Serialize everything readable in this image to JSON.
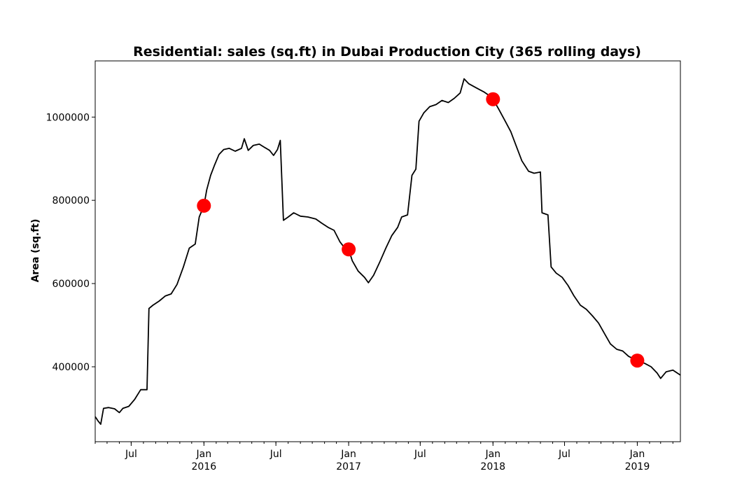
{
  "chart_data": {
    "type": "line",
    "title": "Residential: sales (sq.ft) in Dubai Production City (365 rolling days)",
    "xlabel": "",
    "ylabel": "Area (sq.ft)",
    "xlim": [
      "2015-04-01",
      "2019-04-20"
    ],
    "ylim": [
      220000,
      1135000
    ],
    "grid": false,
    "legend": "none",
    "y_ticks": [
      400000,
      600000,
      800000,
      1000000
    ],
    "y_tick_labels": [
      "400000",
      "600000",
      "800000",
      "1000000"
    ],
    "x_ticks": [
      {
        "date": "2015-07-01",
        "label": "Jul",
        "sublabel": ""
      },
      {
        "date": "2016-01-01",
        "label": "Jan",
        "sublabel": "2016"
      },
      {
        "date": "2016-07-01",
        "label": "Jul",
        "sublabel": ""
      },
      {
        "date": "2017-01-01",
        "label": "Jan",
        "sublabel": "2017"
      },
      {
        "date": "2017-07-01",
        "label": "Jul",
        "sublabel": ""
      },
      {
        "date": "2018-01-01",
        "label": "Jan",
        "sublabel": "2018"
      },
      {
        "date": "2018-07-01",
        "label": "Jul",
        "sublabel": ""
      },
      {
        "date": "2019-01-01",
        "label": "Jan",
        "sublabel": "2019"
      }
    ],
    "series": [
      {
        "color": "#000000",
        "points": [
          [
            "2015-04-01",
            280000
          ],
          [
            "2015-04-08",
            270000
          ],
          [
            "2015-04-15",
            262000
          ],
          [
            "2015-04-22",
            300000
          ],
          [
            "2015-05-05",
            302000
          ],
          [
            "2015-05-20",
            299000
          ],
          [
            "2015-06-01",
            290000
          ],
          [
            "2015-06-10",
            300000
          ],
          [
            "2015-06-25",
            305000
          ],
          [
            "2015-07-10",
            322000
          ],
          [
            "2015-07-25",
            345000
          ],
          [
            "2015-08-10",
            345000
          ],
          [
            "2015-08-15",
            540000
          ],
          [
            "2015-08-25",
            548000
          ],
          [
            "2015-09-10",
            558000
          ],
          [
            "2015-09-25",
            570000
          ],
          [
            "2015-10-10",
            575000
          ],
          [
            "2015-10-25",
            598000
          ],
          [
            "2015-11-10",
            640000
          ],
          [
            "2015-11-25",
            685000
          ],
          [
            "2015-12-10",
            695000
          ],
          [
            "2015-12-20",
            760000
          ],
          [
            "2016-01-01",
            787000
          ],
          [
            "2016-01-08",
            825000
          ],
          [
            "2016-01-18",
            860000
          ],
          [
            "2016-01-28",
            885000
          ],
          [
            "2016-02-08",
            910000
          ],
          [
            "2016-02-20",
            922000
          ],
          [
            "2016-03-05",
            925000
          ],
          [
            "2016-03-20",
            918000
          ],
          [
            "2016-04-05",
            925000
          ],
          [
            "2016-04-12",
            948000
          ],
          [
            "2016-04-22",
            920000
          ],
          [
            "2016-05-05",
            932000
          ],
          [
            "2016-05-20",
            935000
          ],
          [
            "2016-06-01",
            928000
          ],
          [
            "2016-06-15",
            920000
          ],
          [
            "2016-06-25",
            908000
          ],
          [
            "2016-07-05",
            922000
          ],
          [
            "2016-07-12",
            944000
          ],
          [
            "2016-07-20",
            752000
          ],
          [
            "2016-08-01",
            760000
          ],
          [
            "2016-08-15",
            770000
          ],
          [
            "2016-09-01",
            762000
          ],
          [
            "2016-09-20",
            760000
          ],
          [
            "2016-10-10",
            755000
          ],
          [
            "2016-10-25",
            745000
          ],
          [
            "2016-11-10",
            735000
          ],
          [
            "2016-11-25",
            728000
          ],
          [
            "2016-12-10",
            700000
          ],
          [
            "2016-12-20",
            688000
          ],
          [
            "2017-01-01",
            682000
          ],
          [
            "2017-01-10",
            655000
          ],
          [
            "2017-01-25",
            630000
          ],
          [
            "2017-02-10",
            615000
          ],
          [
            "2017-02-20",
            602000
          ],
          [
            "2017-03-05",
            620000
          ],
          [
            "2017-03-20",
            650000
          ],
          [
            "2017-04-05",
            685000
          ],
          [
            "2017-04-20",
            715000
          ],
          [
            "2017-05-05",
            735000
          ],
          [
            "2017-05-15",
            760000
          ],
          [
            "2017-05-30",
            765000
          ],
          [
            "2017-06-10",
            860000
          ],
          [
            "2017-06-20",
            875000
          ],
          [
            "2017-06-28",
            990000
          ],
          [
            "2017-07-10",
            1010000
          ],
          [
            "2017-07-25",
            1025000
          ],
          [
            "2017-08-10",
            1030000
          ],
          [
            "2017-08-25",
            1040000
          ],
          [
            "2017-09-10",
            1035000
          ],
          [
            "2017-09-25",
            1045000
          ],
          [
            "2017-10-10",
            1058000
          ],
          [
            "2017-10-20",
            1092000
          ],
          [
            "2017-11-01",
            1080000
          ],
          [
            "2017-11-20",
            1070000
          ],
          [
            "2017-12-10",
            1060000
          ],
          [
            "2017-12-25",
            1050000
          ],
          [
            "2018-01-01",
            1043000
          ],
          [
            "2018-01-15",
            1020000
          ],
          [
            "2018-02-01",
            990000
          ],
          [
            "2018-02-15",
            965000
          ],
          [
            "2018-03-01",
            930000
          ],
          [
            "2018-03-15",
            895000
          ],
          [
            "2018-04-01",
            870000
          ],
          [
            "2018-04-15",
            865000
          ],
          [
            "2018-05-01",
            868000
          ],
          [
            "2018-05-05",
            770000
          ],
          [
            "2018-05-20",
            765000
          ],
          [
            "2018-05-28",
            640000
          ],
          [
            "2018-06-10",
            625000
          ],
          [
            "2018-06-25",
            615000
          ],
          [
            "2018-07-10",
            595000
          ],
          [
            "2018-07-25",
            570000
          ],
          [
            "2018-08-10",
            548000
          ],
          [
            "2018-08-25",
            538000
          ],
          [
            "2018-09-10",
            522000
          ],
          [
            "2018-09-25",
            505000
          ],
          [
            "2018-10-10",
            480000
          ],
          [
            "2018-10-25",
            455000
          ],
          [
            "2018-11-10",
            442000
          ],
          [
            "2018-11-25",
            438000
          ],
          [
            "2018-12-10",
            425000
          ],
          [
            "2018-12-25",
            418000
          ],
          [
            "2019-01-01",
            415000
          ],
          [
            "2019-01-20",
            408000
          ],
          [
            "2019-02-05",
            400000
          ],
          [
            "2019-02-20",
            385000
          ],
          [
            "2019-03-01",
            372000
          ],
          [
            "2019-03-15",
            388000
          ],
          [
            "2019-04-01",
            392000
          ],
          [
            "2019-04-20",
            380000
          ]
        ]
      }
    ],
    "markers": {
      "color": "#ff0000",
      "points": [
        [
          "2016-01-01",
          787000
        ],
        [
          "2017-01-01",
          682000
        ],
        [
          "2018-01-01",
          1043000
        ],
        [
          "2019-01-01",
          415000
        ]
      ]
    }
  }
}
